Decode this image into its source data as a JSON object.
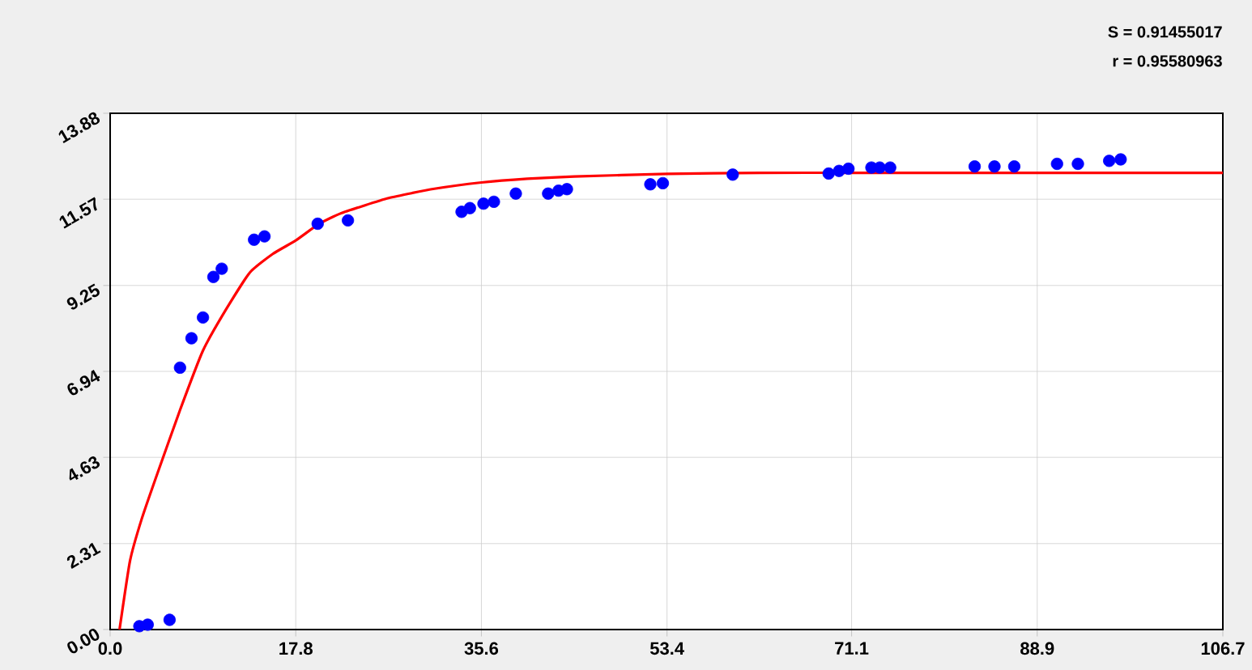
{
  "chart_data": {
    "type": "scatter",
    "annotations": [
      "S = 0.91455017",
      "r = 0.95580963"
    ],
    "series": [
      {
        "color": "#0000ff",
        "x": [
          2.8,
          3.6,
          5.7,
          6.7,
          7.8,
          8.9,
          9.9,
          10.7,
          13.8,
          14.8,
          19.9,
          22.8,
          33.7,
          34.5,
          35.8,
          36.8,
          38.9,
          42.0,
          43.0,
          43.8,
          51.8,
          53.0,
          59.7,
          68.9,
          69.9,
          70.8,
          73.0,
          73.8,
          74.8,
          82.9,
          84.8,
          86.7,
          90.8,
          92.8,
          95.8,
          96.9
        ],
        "values": [
          0.09,
          0.13,
          0.26,
          7.04,
          7.83,
          8.39,
          9.48,
          9.7,
          10.48,
          10.57,
          10.91,
          11.0,
          11.23,
          11.33,
          11.45,
          11.5,
          11.72,
          11.72,
          11.8,
          11.84,
          11.97,
          12.0,
          12.23,
          12.26,
          12.33,
          12.39,
          12.42,
          12.42,
          12.42,
          12.45,
          12.45,
          12.45,
          12.52,
          12.52,
          12.6,
          12.64
        ]
      },
      {
        "type": "line",
        "color": "#ff0000",
        "line_style": "solid",
        "marker": "none",
        "x": [
          0.9,
          1.9,
          3.0,
          4.5,
          6.7,
          8.9,
          11.1,
          13.4,
          15.6,
          17.8,
          20.0,
          22.2,
          26.7,
          31.1,
          35.6,
          40.0,
          44.5,
          53.4,
          62.3,
          71.1,
          80.0,
          88.9,
          97.8,
          106.7
        ],
        "values": [
          0.0,
          1.84,
          2.95,
          4.17,
          5.9,
          7.5,
          8.6,
          9.6,
          10.1,
          10.46,
          10.9,
          11.2,
          11.6,
          11.85,
          12.02,
          12.12,
          12.18,
          12.25,
          12.28,
          12.28,
          12.28,
          12.28,
          12.28,
          12.28
        ]
      }
    ],
    "xlim": [
      0,
      106.7
    ],
    "ylim": [
      0,
      13.88
    ],
    "xticks": [
      {
        "value": 0,
        "label": "0.0"
      },
      17.8,
      35.6,
      53.4,
      71.1,
      88.9,
      106.7
    ],
    "yticks": [
      {
        "value": 0,
        "label": "0.00"
      },
      2.31,
      4.63,
      6.94,
      9.25,
      11.57,
      13.88
    ],
    "grid": true,
    "marker": "circle"
  }
}
